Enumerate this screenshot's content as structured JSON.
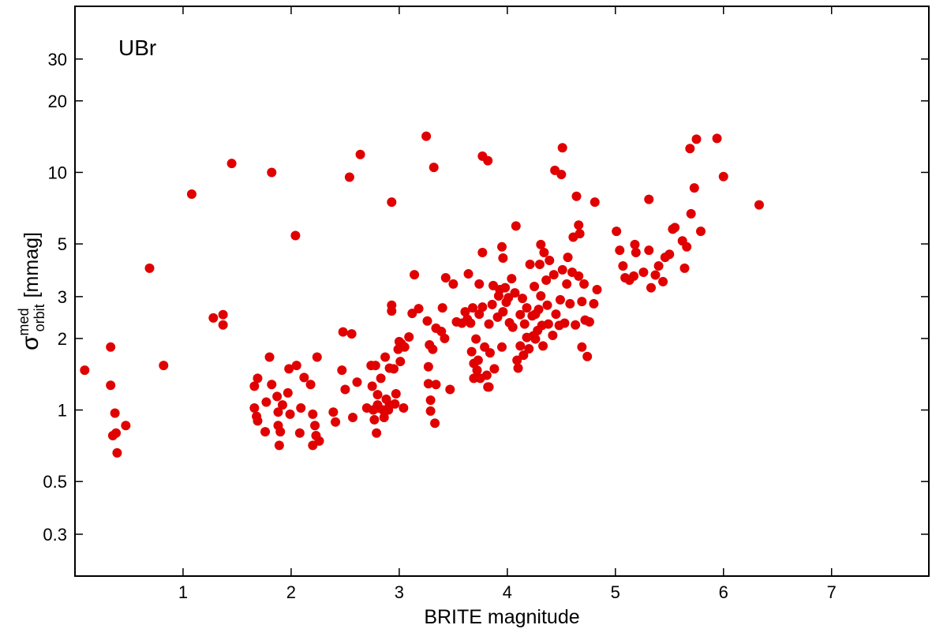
{
  "chart_data": {
    "type": "scatter",
    "annotation": "UBr",
    "x_label": "BRITE magnitude",
    "y_label": {
      "symbol": "σ",
      "sup": "med",
      "sub": "orbit",
      "unit": "[mmag]"
    },
    "xlim": [
      0,
      7.9
    ],
    "ylim": [
      0.2,
      50
    ],
    "log_y": true,
    "xticks": [
      1,
      2,
      3,
      4,
      5,
      6,
      7
    ],
    "yticks": [
      0.3,
      0.5,
      1,
      2,
      3,
      5,
      10,
      20,
      30
    ],
    "series": [
      {
        "color": "#e00000",
        "x": [
          0.09,
          0.33,
          0.33,
          0.37,
          0.35,
          0.38,
          0.39,
          0.47,
          0.69,
          0.82,
          1.08,
          1.28,
          1.37,
          1.37,
          1.45,
          1.82,
          2.04,
          1.69,
          1.66,
          1.66,
          1.68,
          1.69,
          1.76,
          1.77,
          1.8,
          1.82,
          1.87,
          1.88,
          1.88,
          1.89,
          1.9,
          1.92,
          1.98,
          1.97,
          1.99,
          2.05,
          2.08,
          2.09,
          2.12,
          2.18,
          2.2,
          2.2,
          2.22,
          2.23,
          2.24,
          2.26,
          2.39,
          2.41,
          2.47,
          2.48,
          2.56,
          2.5,
          2.57,
          2.61,
          2.54,
          2.64,
          2.7,
          2.74,
          2.75,
          2.78,
          2.76,
          2.77,
          2.79,
          2.8,
          2.8,
          2.81,
          2.83,
          2.85,
          2.86,
          2.87,
          2.88,
          2.9,
          2.91,
          2.91,
          2.93,
          2.93,
          2.93,
          2.95,
          2.96,
          2.97,
          2.99,
          3.0,
          3.01,
          3.02,
          3.04,
          3.05,
          3.09,
          3.12,
          3.14,
          3.18,
          3.25,
          3.26,
          3.27,
          3.28,
          3.29,
          3.29,
          3.27,
          3.31,
          3.32,
          3.33,
          3.34,
          3.34,
          3.39,
          3.4,
          3.42,
          3.43,
          3.47,
          3.5,
          3.53,
          3.58,
          3.61,
          3.63,
          3.64,
          3.66,
          3.67,
          3.68,
          3.69,
          3.69,
          3.71,
          3.72,
          3.73,
          3.74,
          3.74,
          3.75,
          3.77,
          3.77,
          3.77,
          3.79,
          3.81,
          3.82,
          3.82,
          3.83,
          3.83,
          3.84,
          3.86,
          3.87,
          3.88,
          3.91,
          3.92,
          3.93,
          3.95,
          3.95,
          3.96,
          3.96,
          3.98,
          3.99,
          4.01,
          4.02,
          4.04,
          4.05,
          4.07,
          4.08,
          4.09,
          4.1,
          4.12,
          4.12,
          4.14,
          4.15,
          4.16,
          4.18,
          4.18,
          4.2,
          4.21,
          4.23,
          4.24,
          4.25,
          4.26,
          4.26,
          4.28,
          4.29,
          4.3,
          4.31,
          4.31,
          4.32,
          4.33,
          4.34,
          4.36,
          4.37,
          4.38,
          4.39,
          4.42,
          4.43,
          4.44,
          4.45,
          4.48,
          4.49,
          4.5,
          4.51,
          4.51,
          4.53,
          4.55,
          4.56,
          4.58,
          4.6,
          4.61,
          4.63,
          4.64,
          4.66,
          4.66,
          4.67,
          4.69,
          4.69,
          4.71,
          4.72,
          4.74,
          4.76,
          4.81,
          4.83,
          4.8,
          5.01,
          5.04,
          5.07,
          5.09,
          5.13,
          5.17,
          5.18,
          5.19,
          5.26,
          5.31,
          5.31,
          5.33,
          5.4,
          5.44,
          5.46,
          5.5,
          5.53,
          5.55,
          5.62,
          5.64,
          5.66,
          5.69,
          5.7,
          5.73,
          5.75,
          5.79,
          5.94,
          6.0,
          6.33,
          5.37
        ],
        "values": [
          1.47,
          1.84,
          1.27,
          0.97,
          0.78,
          0.8,
          0.66,
          0.86,
          3.95,
          1.54,
          8.1,
          2.44,
          2.52,
          2.28,
          10.9,
          10.0,
          5.42,
          1.36,
          1.26,
          1.02,
          0.94,
          0.9,
          0.81,
          1.08,
          1.67,
          1.28,
          1.14,
          0.98,
          0.86,
          0.71,
          0.81,
          1.05,
          1.49,
          1.18,
          0.96,
          1.54,
          0.8,
          1.02,
          1.37,
          1.28,
          0.96,
          0.71,
          0.86,
          0.78,
          1.67,
          0.74,
          0.98,
          0.89,
          1.47,
          2.13,
          2.09,
          1.22,
          0.93,
          1.31,
          9.55,
          11.9,
          1.02,
          1.54,
          1.26,
          1.54,
          1.0,
          0.91,
          0.8,
          1.16,
          1.05,
          1.02,
          1.36,
          1.0,
          0.93,
          1.67,
          1.11,
          1.0,
          1.05,
          1.5,
          2.76,
          2.61,
          7.5,
          1.49,
          1.06,
          1.17,
          1.8,
          1.94,
          1.6,
          1.9,
          1.02,
          1.84,
          2.03,
          2.55,
          3.71,
          2.67,
          14.2,
          2.37,
          1.29,
          1.88,
          1.1,
          0.99,
          1.52,
          1.8,
          10.5,
          0.88,
          2.21,
          1.28,
          2.14,
          2.69,
          2.0,
          3.6,
          1.22,
          3.39,
          2.35,
          2.32,
          2.59,
          2.41,
          3.74,
          2.32,
          1.76,
          2.69,
          1.57,
          1.36,
          1.99,
          1.47,
          1.62,
          2.53,
          3.39,
          1.36,
          4.6,
          2.71,
          11.7,
          1.84,
          1.4,
          1.25,
          11.2,
          2.3,
          1.25,
          1.74,
          2.78,
          3.34,
          1.49,
          2.46,
          3.02,
          3.21,
          4.86,
          1.84,
          2.59,
          4.36,
          3.27,
          2.84,
          2.97,
          2.33,
          3.57,
          2.23,
          3.11,
          5.95,
          1.62,
          1.5,
          1.86,
          2.52,
          2.95,
          1.7,
          2.3,
          2.02,
          2.69,
          1.81,
          4.1,
          2.49,
          2.05,
          3.31,
          2.53,
          1.99,
          2.16,
          2.65,
          4.1,
          3.02,
          4.97,
          2.27,
          1.86,
          4.6,
          3.52,
          2.76,
          2.3,
          4.26,
          2.06,
          3.71,
          10.2,
          2.53,
          2.27,
          2.91,
          9.8,
          12.7,
          3.89,
          2.32,
          3.39,
          4.39,
          2.8,
          3.8,
          5.34,
          2.28,
          7.93,
          6.0,
          3.66,
          5.52,
          1.84,
          2.86,
          3.39,
          2.39,
          1.68,
          2.35,
          7.5,
          3.21,
          2.8,
          5.65,
          4.7,
          4.04,
          3.6,
          3.52,
          3.66,
          4.97,
          4.6,
          3.8,
          7.7,
          4.7,
          3.27,
          4.04,
          3.47,
          4.39,
          4.52,
          5.77,
          5.86,
          5.15,
          3.95,
          4.86,
          12.6,
          6.7,
          8.6,
          13.8,
          5.65,
          13.9,
          9.6,
          7.3,
          3.7
        ]
      }
    ]
  }
}
